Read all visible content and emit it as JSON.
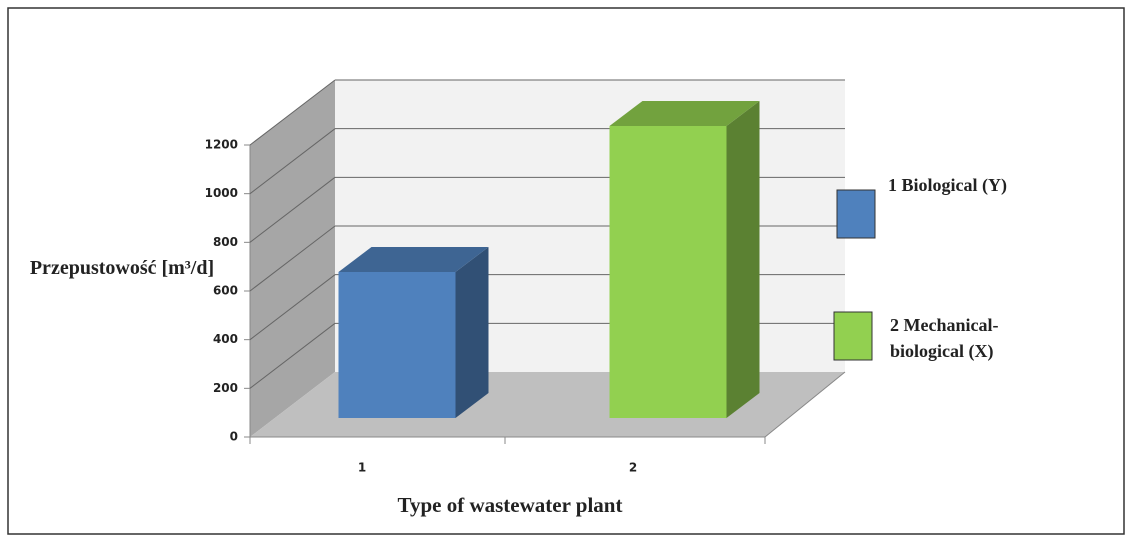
{
  "chart_data": {
    "type": "bar3d",
    "categories": [
      "1",
      "2"
    ],
    "series": [
      {
        "name": "1 Biological (Y)",
        "color": "#4f81bd",
        "values": [
          600,
          null
        ]
      },
      {
        "name": "2 Mechanical-biological (X)",
        "color": "#92d050",
        "values": [
          null,
          1200
        ]
      }
    ],
    "y_label": "Przepustowość [m³/d]",
    "x_label": "Type of wastewater plant",
    "ylim": [
      0,
      1200
    ],
    "yticks": [
      0,
      200,
      400,
      600,
      800,
      1000,
      1200
    ],
    "grid": true,
    "legend": "right"
  }
}
